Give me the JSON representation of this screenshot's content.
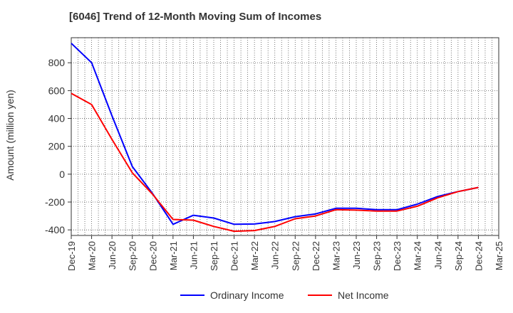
{
  "chart_data": {
    "type": "line",
    "title": "[6046]  Trend of 12-Month Moving Sum of Incomes",
    "xlabel": "",
    "ylabel": "Amount (million yen)",
    "ylim": [
      -440,
      980
    ],
    "yticks": [
      -400,
      -200,
      0,
      200,
      400,
      600,
      800
    ],
    "grid": true,
    "legend": "bottom-center",
    "categories": [
      "Dec-19",
      "Mar-20",
      "Jun-20",
      "Sep-20",
      "Dec-20",
      "Mar-21",
      "Jun-21",
      "Sep-21",
      "Dec-21",
      "Mar-22",
      "Jun-22",
      "Sep-22",
      "Dec-22",
      "Mar-23",
      "Jun-23",
      "Sep-23",
      "Dec-23",
      "Mar-24",
      "Jun-24",
      "Sep-24",
      "Dec-24",
      "Mar-25"
    ],
    "series": [
      {
        "name": "Ordinary Income",
        "color": "#0000ff",
        "values": [
          940,
          800,
          420,
          55,
          -140,
          -360,
          -295,
          -315,
          -360,
          -358,
          -340,
          -305,
          -285,
          -245,
          -245,
          -255,
          -255,
          -215,
          -160,
          -125,
          -95,
          null
        ]
      },
      {
        "name": "Net Income",
        "color": "#ff0000",
        "values": [
          580,
          500,
          250,
          10,
          -145,
          -325,
          -330,
          -375,
          -410,
          -405,
          -375,
          -320,
          -300,
          -255,
          -258,
          -265,
          -265,
          -230,
          -170,
          -125,
          -95,
          null
        ]
      }
    ]
  }
}
